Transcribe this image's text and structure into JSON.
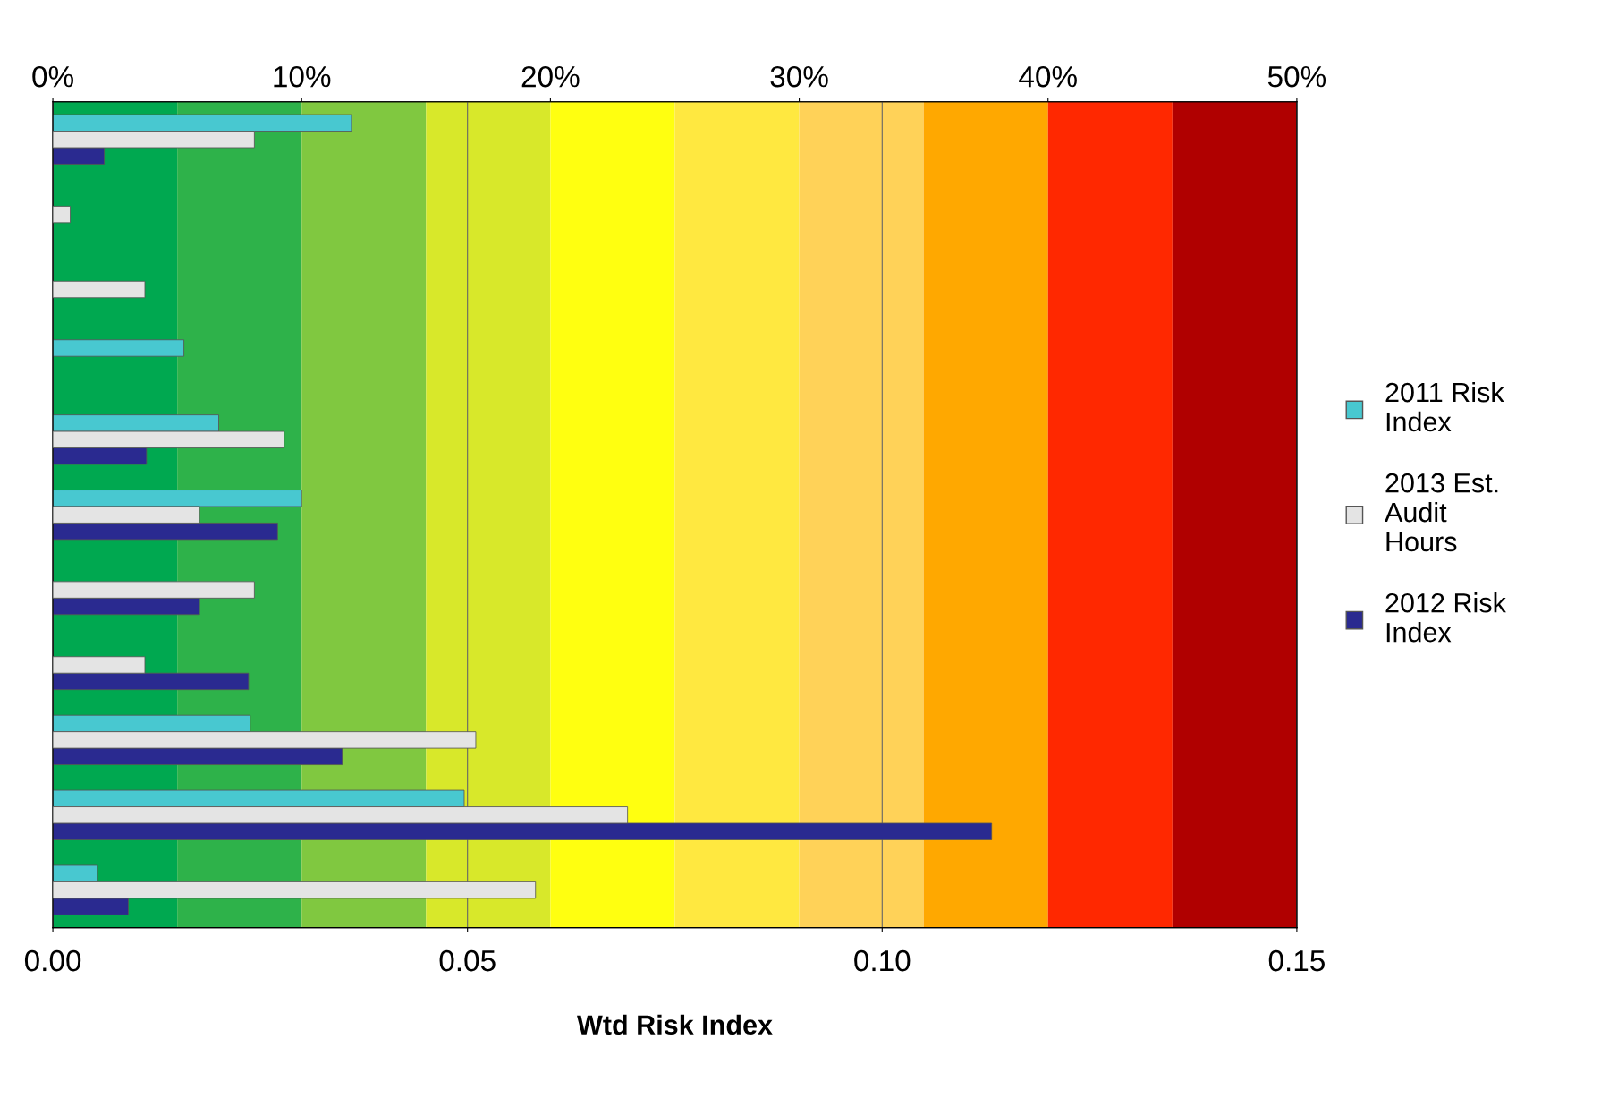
{
  "chart_data": {
    "type": "bar",
    "orientation": "horizontal",
    "xlabel": "Wtd Risk Index",
    "categories": [
      null,
      null,
      null,
      null,
      null,
      null,
      null,
      null,
      null,
      null,
      null
    ],
    "xlim": [
      0,
      0.15
    ],
    "xticks": [
      {
        "value": 0,
        "label": "0.00"
      },
      {
        "value": 0.05,
        "label": "0.05"
      },
      {
        "value": 0.1,
        "label": "0.10"
      },
      {
        "value": 0.15,
        "label": "0.15"
      }
    ],
    "x2lim": [
      0,
      50
    ],
    "x2ticks": [
      {
        "value": 0,
        "label": "0%"
      },
      {
        "value": 10,
        "label": "10%"
      },
      {
        "value": 20,
        "label": "20%"
      },
      {
        "value": 30,
        "label": "30%"
      },
      {
        "value": 40,
        "label": "40%"
      },
      {
        "value": 50,
        "label": "50%"
      }
    ],
    "grid": "x",
    "legend": "right",
    "series": [
      {
        "name": "2011 Risk Index",
        "color": "#48c8d0",
        "values": [
          0.036,
          null,
          null,
          0.0158,
          0.02,
          0.03,
          null,
          null,
          0.0238,
          0.0496,
          0.0054
        ]
      },
      {
        "name": "2013 Est. Audit Hours",
        "color": "#e4e4e4",
        "axis": "x2",
        "values": [
          8.1,
          0.7,
          3.7,
          null,
          9.3,
          5.9,
          8.1,
          3.7,
          17.0,
          23.1,
          19.4
        ]
      },
      {
        "name": "2012 Risk Index",
        "color": "#2a2a90",
        "values": [
          0.0062,
          null,
          null,
          null,
          0.0113,
          0.0271,
          0.0177,
          0.0236,
          0.0349,
          0.1132,
          0.0091
        ]
      }
    ],
    "bands": [
      {
        "axis": "x",
        "from": 0,
        "to": 0.015,
        "color": "#00a850"
      },
      {
        "axis": "x",
        "from": 0.015,
        "to": 0.03,
        "color": "#2eb24a"
      },
      {
        "axis": "x",
        "from": 0.03,
        "to": 0.045,
        "color": "#80c840"
      },
      {
        "axis": "x",
        "from": 0.045,
        "to": 0.06,
        "color": "#d8e82a"
      },
      {
        "axis": "x",
        "from": 0.06,
        "to": 0.075,
        "color": "#ffff10"
      },
      {
        "axis": "x",
        "from": 0.075,
        "to": 0.09,
        "color": "#ffe840"
      },
      {
        "axis": "x",
        "from": 0.09,
        "to": 0.105,
        "color": "#ffd258"
      },
      {
        "axis": "x",
        "from": 0.105,
        "to": 0.12,
        "color": "#ffa800"
      },
      {
        "axis": "x",
        "from": 0.12,
        "to": 0.135,
        "color": "#ff2800"
      },
      {
        "axis": "x",
        "from": 0.135,
        "to": 0.15,
        "color": "#b00000"
      }
    ]
  }
}
